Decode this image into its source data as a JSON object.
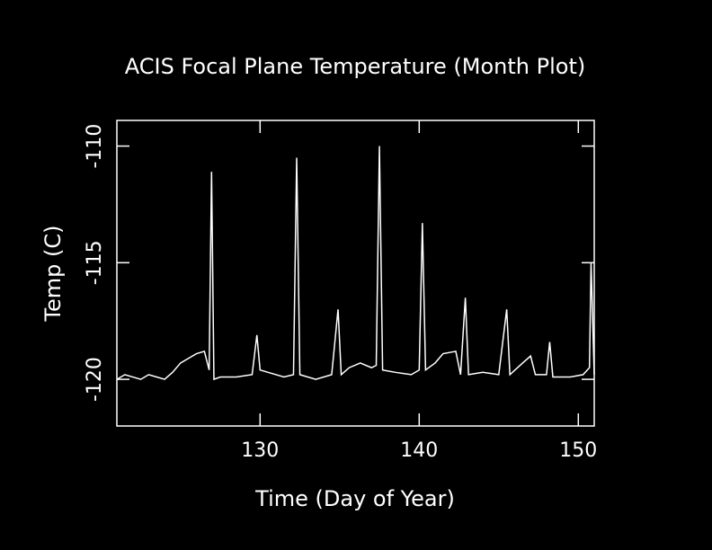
{
  "chart_data": {
    "type": "line",
    "title": "ACIS Focal Plane Temperature (Month Plot)",
    "x_label": "Time (Day of Year)",
    "y_label": "Temp (C)",
    "x": [
      121.0,
      121.5,
      122.5,
      123.0,
      123.5,
      124.0,
      124.5,
      125.0,
      125.5,
      126.0,
      126.5,
      126.8,
      126.95,
      127.1,
      127.5,
      128.5,
      129.5,
      129.8,
      130.0,
      130.5,
      131.5,
      132.1,
      132.3,
      132.5,
      133.5,
      134.5,
      134.9,
      135.1,
      135.6,
      136.3,
      137.0,
      137.3,
      137.5,
      137.7,
      138.5,
      139.5,
      140.0,
      140.2,
      140.4,
      141.0,
      141.5,
      142.3,
      142.6,
      142.9,
      143.1,
      144.0,
      145.0,
      145.5,
      145.7,
      146.5,
      147.0,
      147.3,
      148.0,
      148.2,
      148.4,
      149.5,
      150.3,
      150.7,
      150.8,
      151.0
    ],
    "series": [
      {
        "color": "#ffffff",
        "values": [
          -120.0,
          -119.8,
          -120.0,
          -119.8,
          -119.9,
          -120.0,
          -119.7,
          -119.3,
          -119.1,
          -118.9,
          -118.8,
          -119.6,
          -111.1,
          -120.0,
          -119.9,
          -119.9,
          -119.8,
          -118.1,
          -119.6,
          -119.7,
          -119.9,
          -119.8,
          -110.5,
          -119.8,
          -120.0,
          -119.8,
          -117.0,
          -119.8,
          -119.5,
          -119.3,
          -119.5,
          -119.4,
          -110.0,
          -119.6,
          -119.7,
          -119.8,
          -119.6,
          -113.3,
          -119.6,
          -119.3,
          -118.9,
          -118.8,
          -119.8,
          -116.5,
          -119.8,
          -119.7,
          -119.8,
          -117.0,
          -119.8,
          -119.3,
          -119.0,
          -119.8,
          -119.8,
          -118.4,
          -119.9,
          -119.9,
          -119.8,
          -119.5,
          -115.0,
          -119.8
        ]
      }
    ],
    "xlim": [
      121,
      151
    ],
    "xticks": [
      130,
      140,
      150
    ],
    "ylim": [
      -122,
      -108.9
    ],
    "yticks": [
      -110,
      -115,
      -120
    ]
  }
}
